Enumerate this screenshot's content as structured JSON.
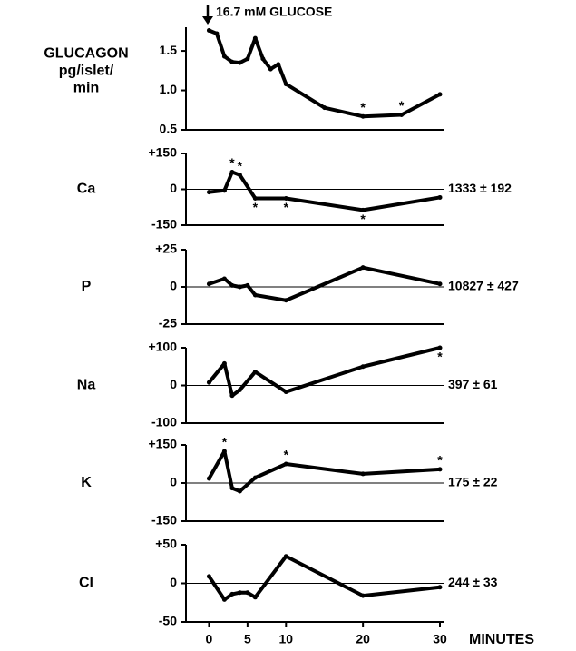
{
  "chart_data": [
    {
      "type": "line",
      "ylabel": [
        "GLUCAGON",
        "pg/islet/",
        "min"
      ],
      "annotation": "16.7 mM  GLUCOSE",
      "x": [
        0,
        1,
        2,
        3,
        4,
        5,
        6,
        7,
        8,
        9,
        10,
        15,
        20,
        25,
        30
      ],
      "values": [
        1.76,
        1.72,
        1.43,
        1.36,
        1.35,
        1.4,
        1.66,
        1.4,
        1.27,
        1.33,
        1.08,
        0.78,
        0.67,
        0.69,
        0.95
      ],
      "xlim": [
        -3,
        30
      ],
      "ylim": [
        0.5,
        1.8
      ],
      "yticks": [
        {
          "value": 0.5,
          "label": "0.5"
        },
        {
          "value": 1.0,
          "label": "1.0"
        },
        1.5
      ],
      "markers": [
        {
          "x": 20,
          "text": "*",
          "position": "above"
        },
        {
          "x": 25,
          "text": "*",
          "position": "above"
        }
      ],
      "color": "#000000"
    },
    {
      "type": "line",
      "ylabel": [
        "Ca"
      ],
      "note": "1333 ± 192",
      "x": [
        0,
        2,
        3,
        4,
        6,
        10,
        20,
        30
      ],
      "values": [
        -12,
        -5,
        72,
        60,
        -38,
        -38,
        -87,
        -34
      ],
      "xlim": [
        -3,
        30
      ],
      "ylim": [
        -150,
        150
      ],
      "yticks": [
        -150,
        0,
        {
          "value": 150,
          "label": "+150"
        }
      ],
      "zero_line": true,
      "markers": [
        {
          "x": 3,
          "text": "*",
          "position": "above"
        },
        {
          "x": 4,
          "text": "*",
          "position": "above"
        },
        {
          "x": 6,
          "text": "*",
          "position": "below"
        },
        {
          "x": 10,
          "text": "*",
          "position": "below"
        },
        {
          "x": 20,
          "text": "*",
          "position": "below"
        }
      ],
      "color": "#000000"
    },
    {
      "type": "line",
      "ylabel": [
        "P"
      ],
      "note": "10827 ± 427",
      "x": [
        0,
        2,
        3,
        4,
        5,
        6,
        10,
        20,
        30
      ],
      "values": [
        2,
        5.5,
        1,
        0,
        1,
        -5.5,
        -9,
        13,
        2
      ],
      "xlim": [
        -3,
        30
      ],
      "ylim": [
        -25,
        25
      ],
      "yticks": [
        -25,
        0,
        {
          "value": 25,
          "label": "+25"
        }
      ],
      "zero_line": true,
      "markers": [],
      "color": "#000000"
    },
    {
      "type": "line",
      "ylabel": [
        "Na"
      ],
      "note": "397 ± 61",
      "x": [
        0,
        2,
        3,
        4,
        6,
        10,
        20,
        30
      ],
      "values": [
        8,
        58,
        -27,
        -12,
        36,
        -17,
        50,
        100
      ],
      "xlim": [
        -3,
        30
      ],
      "ylim": [
        -100,
        100
      ],
      "yticks": [
        -100,
        0,
        {
          "value": 100,
          "label": "+100"
        }
      ],
      "zero_line": true,
      "markers": [
        {
          "x": 30,
          "text": "*",
          "position": "below"
        }
      ],
      "color": "#000000"
    },
    {
      "type": "line",
      "ylabel": [
        "K"
      ],
      "note": "175 ± 22",
      "x": [
        0,
        2,
        3,
        4,
        6,
        10,
        20,
        30
      ],
      "values": [
        18,
        125,
        -20,
        -32,
        21,
        75,
        36,
        54
      ],
      "xlim": [
        -3,
        30
      ],
      "ylim": [
        -150,
        150
      ],
      "yticks": [
        -150,
        0,
        {
          "value": 150,
          "label": "+150"
        }
      ],
      "zero_line": true,
      "markers": [
        {
          "x": 2,
          "text": "*",
          "position": "above"
        },
        {
          "x": 10,
          "text": "*",
          "position": "above"
        },
        {
          "x": 30,
          "text": "*",
          "position": "above"
        }
      ],
      "color": "#000000"
    },
    {
      "type": "line",
      "ylabel": [
        "Cl"
      ],
      "note": "244 ± 33",
      "x": [
        0,
        2,
        3,
        4,
        5,
        6,
        10,
        20,
        30
      ],
      "values": [
        9,
        -21,
        -14,
        -12,
        -12,
        -18,
        35,
        -16,
        -5
      ],
      "xlim": [
        -3,
        30
      ],
      "ylim": [
        -50,
        50
      ],
      "yticks": [
        -50,
        0,
        {
          "value": 50,
          "label": "+50"
        }
      ],
      "zero_line": true,
      "markers": [],
      "xticks": [
        0,
        5,
        10,
        20,
        30
      ],
      "xlabel": "MINUTES",
      "color": "#000000"
    }
  ]
}
